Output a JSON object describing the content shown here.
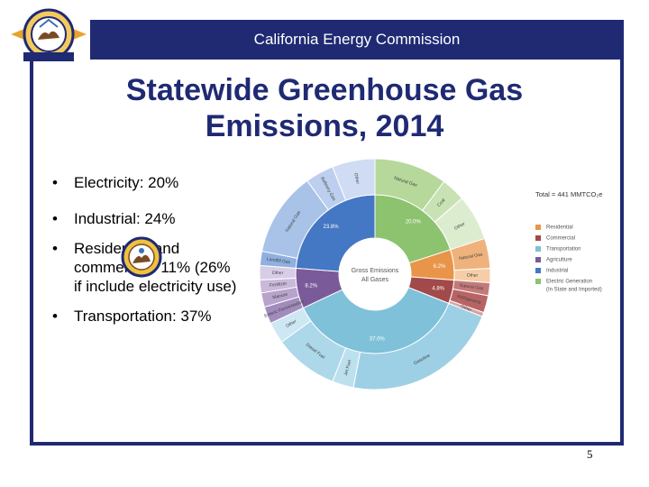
{
  "header": {
    "org_name": "California Energy Commission"
  },
  "slide": {
    "title_line1": "Statewide Greenhouse Gas",
    "title_line2": "Emissions, 2014",
    "bullets": [
      {
        "text": "Electricity: 20%"
      },
      {
        "text": "Industrial: 24%"
      },
      {
        "text": "Residential and commercial: 11% (26% if include electricity use)"
      },
      {
        "text": "Transportation: 37%"
      }
    ],
    "page_number": "5"
  },
  "chart_data": {
    "type": "pie",
    "subtype": "donut-sunburst",
    "center_label_line1": "Gross Emissions",
    "center_label_line2": "All Gases",
    "total_label": "Total = 441 MMTCO₂e",
    "inner": [
      {
        "name": "Electric Generation (In State and Imported)",
        "value": 20.0,
        "label": "20.0%",
        "color": "#8dc26f"
      },
      {
        "name": "Residential",
        "value": 6.2,
        "label": "6.2%",
        "color": "#e8954a"
      },
      {
        "name": "Commercial",
        "value": 4.8,
        "label": "4.8%",
        "color": "#a24a4a"
      },
      {
        "name": "Transportation",
        "value": 37.0,
        "label": "37.0%",
        "color": "#7fc1d9"
      },
      {
        "name": "Agriculture",
        "value": 8.2,
        "label": "8.2%",
        "color": "#7b5a9a"
      },
      {
        "name": "Industrial",
        "value": 23.8,
        "label": "23.8%",
        "color": "#4477c4"
      }
    ],
    "outer": [
      {
        "parent": "Electric Generation (In State and Imported)",
        "label": "Natural Gas",
        "value": 10.2,
        "color": "#b6d89a"
      },
      {
        "parent": "Electric Generation (In State and Imported)",
        "label": "Coal",
        "value": 3.4,
        "color": "#c8e2b4"
      },
      {
        "parent": "Electric Generation (In State and Imported)",
        "label": "Other",
        "value": 6.4,
        "color": "#dcedcf"
      },
      {
        "parent": "Residential",
        "label": "Natural Gas",
        "value": 4.2,
        "color": "#f0b27c"
      },
      {
        "parent": "Residential",
        "label": "Other",
        "value": 2.0,
        "color": "#f6cda6"
      },
      {
        "parent": "Commercial",
        "label": "Natural Gas",
        "value": 1.8,
        "color": "#c47a7a"
      },
      {
        "parent": "Commercial",
        "label": "Refrigerants",
        "value": 2.4,
        "color": "#b86464"
      },
      {
        "parent": "Commercial",
        "label": "Other",
        "value": 0.6,
        "color": "#d9a3a3"
      },
      {
        "parent": "Transportation",
        "label": "Gasoline",
        "value": 22.0,
        "color": "#9dd0e4"
      },
      {
        "parent": "Transportation",
        "label": "Jet Fuel",
        "value": 3.0,
        "color": "#bde0ee"
      },
      {
        "parent": "Transportation",
        "label": "Diesel Fuel",
        "value": 9.0,
        "color": "#add8ea"
      },
      {
        "parent": "Transportation",
        "label": "Other",
        "value": 3.0,
        "color": "#cde8f3"
      },
      {
        "parent": "Agriculture",
        "label": "Enteric Fermentation",
        "value": 2.4,
        "color": "#a28bbd"
      },
      {
        "parent": "Agriculture",
        "label": "Manure",
        "value": 2.0,
        "color": "#b7a3cc"
      },
      {
        "parent": "Agriculture",
        "label": "Fertilizer",
        "value": 1.8,
        "color": "#c9b9da"
      },
      {
        "parent": "Agriculture",
        "label": "Other",
        "value": 2.0,
        "color": "#d8cde6"
      },
      {
        "parent": "Industrial",
        "label": "Landfill Gas",
        "value": 2.0,
        "color": "#8fb0e0"
      },
      {
        "parent": "Industrial",
        "label": "Natural Gas",
        "value": 11.8,
        "color": "#a8c2e8"
      },
      {
        "parent": "Industrial",
        "label": "Refinery Gas",
        "value": 4.0,
        "color": "#bccfee"
      },
      {
        "parent": "Industrial",
        "label": "Other",
        "value": 6.0,
        "color": "#cfdcf3"
      }
    ],
    "legend_placement": "right"
  }
}
